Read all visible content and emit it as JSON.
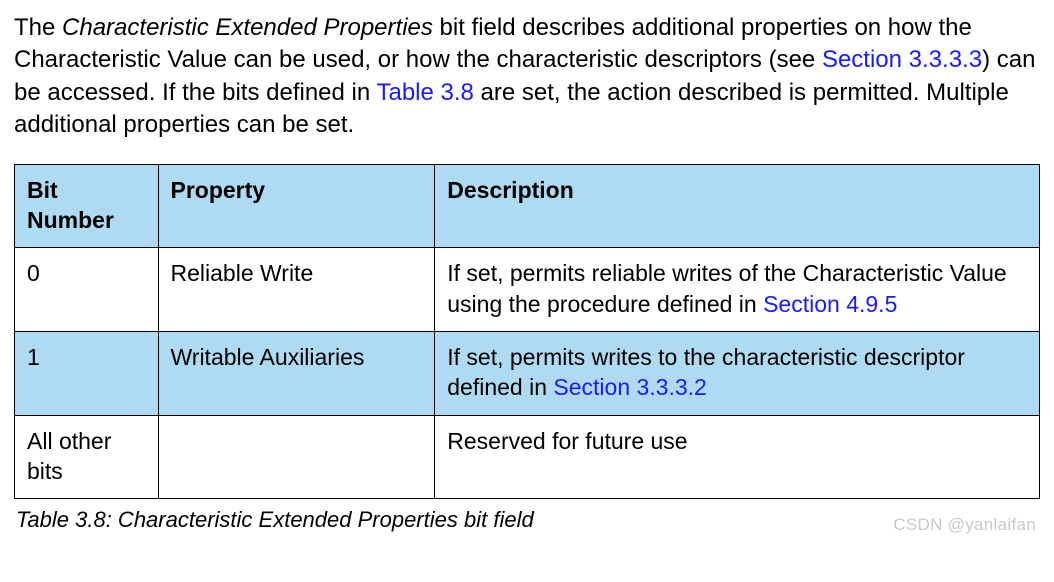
{
  "colors": {
    "header_bg": "#aedaf2",
    "alt_row_bg": "#aedaf2",
    "border": "#000000",
    "link": "#1a1aff",
    "text": "#000000",
    "watermark": "#c9c9c9",
    "page_bg": "#ffffff"
  },
  "typography": {
    "body_fontsize_pt": 18,
    "table_fontsize_pt": 17,
    "font_family": "Arial"
  },
  "intro": {
    "seg1_pre": "The ",
    "seg1_italic": "Characteristic Extended Properties",
    "seg1_post": " bit field describes additional properties on how the Characteristic Value can be used, or how the characteristic descriptors (see ",
    "link1": "Section 3.3.3.3",
    "seg2": ") can be accessed. If the bits defined in ",
    "link2": "Table 3.8",
    "seg3": " are set, the action described is permitted. Multiple additional properties can be set."
  },
  "table": {
    "column_widths_pct": [
      14,
      27,
      59
    ],
    "headers": {
      "c0": "Bit Number",
      "c1": "Property",
      "c2": "Description"
    },
    "rows": [
      {
        "bit": "0",
        "property": "Reliable Write",
        "desc_pre": "If set, permits reliable writes of the Characteristic Value using the procedure defined in ",
        "desc_link": "Section 4.9.5",
        "desc_post": ""
      },
      {
        "bit": "1",
        "property": "Writable Auxiliaries",
        "desc_pre": "If set, permits writes to the characteristic descriptor defined in ",
        "desc_link": "Section 3.3.3.2",
        "desc_post": ""
      },
      {
        "bit": "All other bits",
        "property": "",
        "desc_pre": "Reserved for future use",
        "desc_link": "",
        "desc_post": ""
      }
    ]
  },
  "caption": "Table 3.8:  Characteristic Extended Properties bit field",
  "watermark": "CSDN @yanlaifan"
}
